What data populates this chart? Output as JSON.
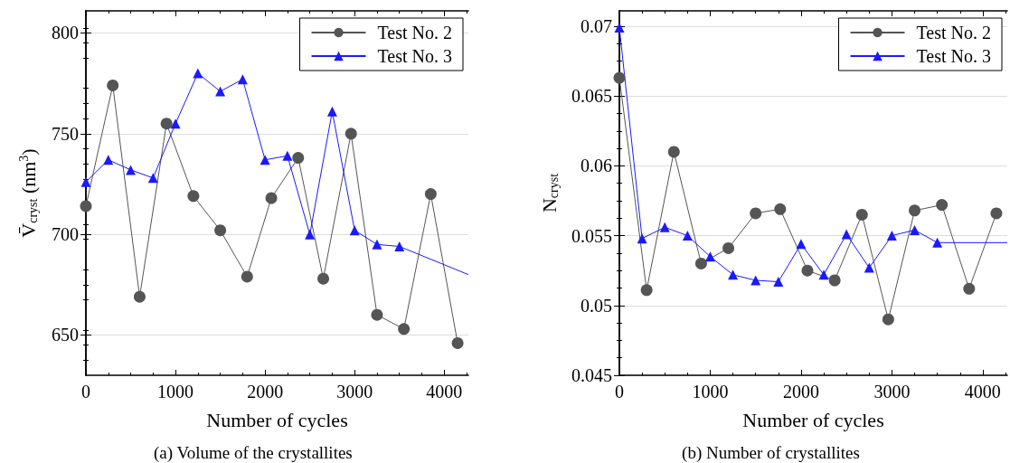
{
  "chart_data": [
    {
      "type": "line",
      "xlabel": "Number of cycles",
      "ylabel": "V̄$_{cryst}$ (nm$^{3}$)",
      "annotations": [
        "(a) Volume of the crystallites"
      ],
      "xlim": [
        0,
        4270
      ],
      "xticks": [
        0,
        1000,
        2000,
        3000,
        4000
      ],
      "ylim": [
        630,
        811
      ],
      "yticks": [
        650,
        700,
        750,
        800
      ],
      "grid": "y",
      "legend": "top right",
      "series": [
        {
          "name": "Test No. 2",
          "color": "#555555",
          "marker": "circle",
          "x": [
            0,
            300,
            600,
            900,
            1200,
            1500,
            1800,
            2070,
            2370,
            2650,
            2960,
            3250,
            3550,
            3850,
            4150
          ],
          "values": [
            714,
            774,
            669,
            755,
            719,
            702,
            679,
            718,
            738,
            678,
            750,
            660,
            653,
            720,
            646
          ]
        },
        {
          "name": "Test No. 3",
          "color": "#1a1aff",
          "marker": "triangle",
          "x": [
            0,
            250,
            500,
            750,
            1000,
            1250,
            1500,
            1750,
            2000,
            2250,
            2500,
            2750,
            3000,
            3250,
            3500
          ],
          "values": [
            726,
            737,
            732,
            728,
            755,
            780,
            771,
            777,
            737,
            739,
            700,
            761,
            702,
            695,
            694
          ]
        },
        {
          "color": "#1a1aff",
          "marker": "none",
          "x": [
            3500,
            4270
          ],
          "values": [
            694,
            680
          ]
        }
      ]
    },
    {
      "type": "line",
      "xlabel": "Number of cycles",
      "ylabel": "N$_{cryst}$",
      "annotations": [
        "(b) Number of crystallites"
      ],
      "xlim": [
        0,
        4270
      ],
      "xticks": [
        0,
        1000,
        2000,
        3000,
        4000
      ],
      "ylim": [
        0.045,
        0.0711
      ],
      "yticks": [
        0.045,
        0.05,
        0.055,
        0.06,
        0.065,
        0.07
      ],
      "grid": "y",
      "legend": "top right",
      "series": [
        {
          "name": "Test No. 2",
          "color": "#555555",
          "marker": "circle",
          "x": [
            0,
            300,
            600,
            900,
            1200,
            1500,
            1770,
            2070,
            2370,
            2670,
            2960,
            3250,
            3550,
            3850,
            4150
          ],
          "values": [
            0.0663,
            0.0511,
            0.061,
            0.053,
            0.0541,
            0.0566,
            0.0569,
            0.0525,
            0.0518,
            0.0565,
            0.049,
            0.0568,
            0.0572,
            0.0512,
            0.0566
          ]
        },
        {
          "name": "Test No. 3",
          "color": "#1a1aff",
          "marker": "triangle",
          "x": [
            0,
            250,
            500,
            750,
            1000,
            1250,
            1500,
            1750,
            2000,
            2250,
            2500,
            2750,
            3000,
            3250,
            3500
          ],
          "values": [
            0.0699,
            0.0548,
            0.0556,
            0.055,
            0.0535,
            0.0522,
            0.0518,
            0.0517,
            0.0544,
            0.0522,
            0.0551,
            0.0527,
            0.055,
            0.0554,
            0.0545
          ]
        },
        {
          "color": "#1a1aff",
          "marker": "none",
          "x": [
            3500,
            4270
          ],
          "values": [
            0.0545,
            0.0545
          ]
        }
      ]
    }
  ]
}
